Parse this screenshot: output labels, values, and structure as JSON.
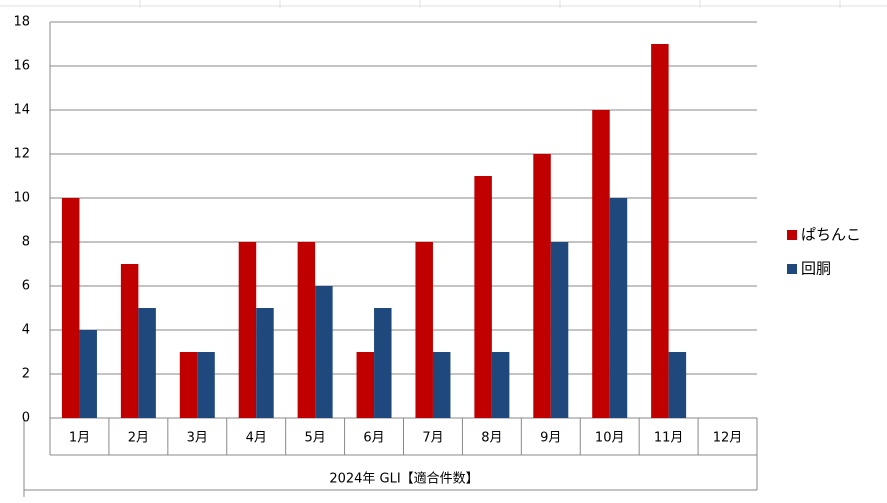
{
  "chart_data": {
    "type": "bar",
    "x_label": "2024年 GLI【適合件数】",
    "categories": [
      "1月",
      "2月",
      "3月",
      "4月",
      "5月",
      "6月",
      "7月",
      "8月",
      "9月",
      "10月",
      "11月",
      "12月"
    ],
    "series": [
      {
        "name": "ぱちんこ",
        "color": "#c00000",
        "values": [
          10,
          7,
          3,
          8,
          8,
          3,
          8,
          11,
          12,
          14,
          17,
          null
        ]
      },
      {
        "name": "回胴",
        "color": "#1f497d",
        "values": [
          4,
          5,
          3,
          5,
          6,
          5,
          3,
          3,
          8,
          10,
          3,
          null
        ]
      }
    ],
    "ylim": [
      0,
      18
    ],
    "yticks": [
      0,
      2,
      4,
      6,
      8,
      10,
      12,
      14,
      16,
      18
    ],
    "grid": true,
    "legend": "right"
  }
}
